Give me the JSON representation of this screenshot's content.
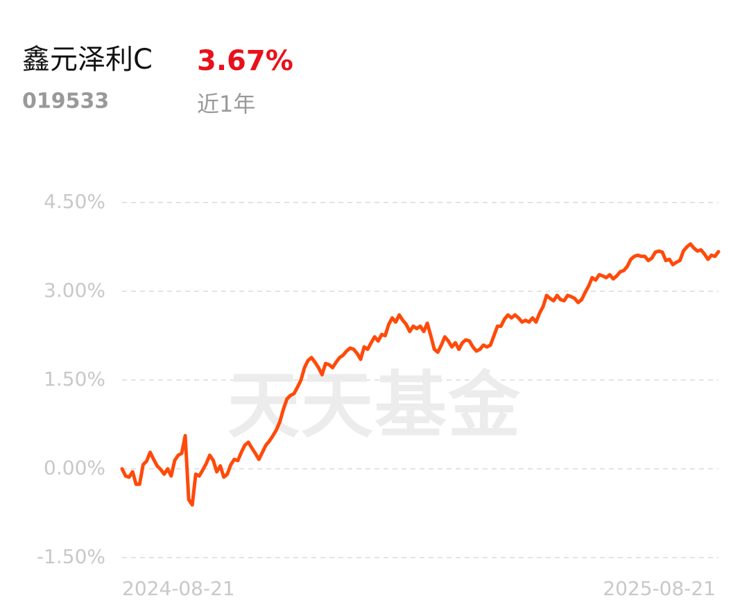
{
  "header": {
    "title": "鑫元泽利C",
    "return": "3.67%",
    "code": "019533",
    "period": "近1年"
  },
  "chart_data": {
    "type": "line",
    "watermark": "天天基金",
    "categories": [
      "2024-08-21",
      null,
      null,
      null,
      null,
      null,
      null,
      null,
      null,
      null,
      null,
      null,
      null,
      null,
      null,
      null,
      null,
      null,
      null,
      null,
      null,
      null,
      null,
      null,
      null,
      null,
      null,
      null,
      null,
      null,
      null,
      null,
      null,
      null,
      null,
      null,
      null,
      null,
      null,
      null,
      null,
      null,
      null,
      null,
      null,
      null,
      null,
      null,
      null,
      null,
      null,
      null,
      null,
      null,
      null,
      null,
      null,
      null,
      null,
      null,
      null,
      null,
      null,
      null,
      null,
      null,
      null,
      null,
      null,
      null,
      null,
      null,
      null,
      null,
      null,
      null,
      null,
      null,
      null,
      null,
      null,
      null,
      null,
      null,
      null,
      null,
      null,
      null,
      null,
      null,
      null,
      null,
      null,
      null,
      null,
      null,
      null,
      null,
      null,
      null,
      null,
      null,
      null,
      null,
      null,
      null,
      null,
      null,
      null,
      null,
      null,
      null,
      null,
      null,
      null,
      null,
      null,
      null,
      null,
      null,
      null,
      null,
      null,
      null,
      null,
      null,
      null,
      null,
      null,
      null,
      null,
      null,
      null,
      null,
      null,
      null,
      null,
      null,
      null,
      null,
      null,
      null,
      null,
      null,
      null,
      null,
      null,
      null,
      null,
      null,
      null,
      null,
      null,
      null,
      null,
      null,
      null,
      null,
      null,
      null,
      null,
      null,
      null,
      null,
      null,
      null,
      null,
      null,
      null,
      null,
      "2025-08-21"
    ],
    "series": [
      {
        "name": "鑫元泽利C",
        "color": "#ff4a0a",
        "values": [
          0,
          -0.12,
          -0.14,
          -0.05,
          -0.26,
          -0.26,
          0.07,
          0.13,
          0.28,
          0.16,
          0.05,
          -0.01,
          -0.09,
          0,
          -0.12,
          0.14,
          0.23,
          0.26,
          0.56,
          -0.52,
          -0.61,
          -0.09,
          -0.12,
          -0.02,
          0.09,
          0.23,
          0.14,
          -0.05,
          0.05,
          -0.14,
          -0.09,
          0.07,
          0.16,
          0.14,
          0.28,
          0.4,
          0.45,
          0.35,
          0.26,
          0.16,
          0.28,
          0.4,
          0.47,
          0.56,
          0.66,
          0.8,
          1.01,
          1.18,
          1.24,
          1.27,
          1.38,
          1.5,
          1.71,
          1.83,
          1.88,
          1.8,
          1.71,
          1.59,
          1.78,
          1.76,
          1.71,
          1.8,
          1.88,
          1.92,
          1.99,
          2.04,
          2.02,
          1.95,
          1.85,
          2.06,
          2.02,
          2.13,
          2.23,
          2.16,
          2.27,
          2.25,
          2.44,
          2.55,
          2.48,
          2.6,
          2.51,
          2.44,
          2.32,
          2.41,
          2.37,
          2.41,
          2.32,
          2.46,
          2.25,
          2.02,
          1.97,
          2.09,
          2.23,
          2.16,
          2.06,
          2.13,
          2.02,
          2.13,
          2.18,
          2.16,
          2.06,
          1.99,
          2.02,
          2.09,
          2.06,
          2.09,
          2.25,
          2.41,
          2.41,
          2.53,
          2.6,
          2.55,
          2.6,
          2.55,
          2.48,
          2.51,
          2.48,
          2.55,
          2.48,
          2.63,
          2.74,
          2.93,
          2.88,
          2.84,
          2.93,
          2.86,
          2.84,
          2.93,
          2.91,
          2.88,
          2.81,
          2.86,
          2.98,
          3.09,
          3.23,
          3.19,
          3.28,
          3.26,
          3.23,
          3.28,
          3.21,
          3.26,
          3.33,
          3.35,
          3.42,
          3.54,
          3.59,
          3.61,
          3.59,
          3.59,
          3.52,
          3.56,
          3.66,
          3.68,
          3.66,
          3.52,
          3.54,
          3.45,
          3.49,
          3.52,
          3.68,
          3.75,
          3.8,
          3.73,
          3.68,
          3.7,
          3.63,
          3.54,
          3.61,
          3.59,
          3.67
        ]
      }
    ],
    "ylim": [
      -1.5,
      4.5
    ],
    "yticks": [
      {
        "value": -1.5,
        "label": "-1.50%"
      },
      {
        "value": 0,
        "label": "0.00%"
      },
      {
        "value": 1.5,
        "label": "1.50%"
      },
      {
        "value": 3,
        "label": "3.00%"
      },
      {
        "value": 4.5,
        "label": "4.50%"
      }
    ],
    "grid": true
  }
}
